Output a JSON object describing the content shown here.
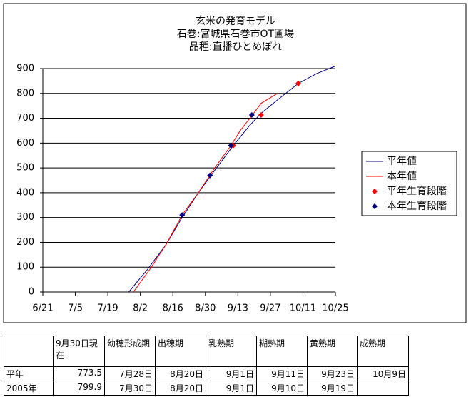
{
  "chart_data": {
    "type": "line",
    "title": [
      "玄米の発育モデル",
      "石巻:宮城県石巻市OT圃場",
      "品種:直播ひとめぼれ"
    ],
    "xlim": [
      "6/21",
      "10/25"
    ],
    "xticks": [
      "6/21",
      "7/5",
      "7/19",
      "8/2",
      "8/16",
      "8/30",
      "9/13",
      "9/27",
      "10/11",
      "10/25"
    ],
    "ylim": [
      0,
      900
    ],
    "yticks": [
      0,
      100,
      200,
      300,
      400,
      500,
      600,
      700,
      800,
      900
    ],
    "grid": true,
    "series": [
      {
        "name": "平年値",
        "type": "line",
        "color": "#000080",
        "x": [
          "7/28",
          "8/5",
          "8/13",
          "8/20",
          "8/27",
          "9/3",
          "9/11",
          "9/18",
          "9/23",
          "9/30",
          "10/9",
          "10/17",
          "10/25"
        ],
        "values": [
          0,
          90,
          190,
          300,
          400,
          490,
          590,
          670,
          720,
          773.5,
          840,
          880,
          910
        ]
      },
      {
        "name": "本年値",
        "type": "line",
        "color": "#ff0000",
        "x": [
          "7/30",
          "8/6",
          "8/13",
          "8/20",
          "8/27",
          "9/3",
          "9/10",
          "9/14",
          "9/19",
          "9/23",
          "9/30"
        ],
        "values": [
          0,
          90,
          190,
          310,
          400,
          500,
          590,
          650,
          710,
          760,
          799.9
        ]
      },
      {
        "name": "平年生育段階",
        "type": "scatter",
        "color": "#ff0000",
        "x": [
          "9/11",
          "9/23",
          "10/9"
        ],
        "values": [
          590,
          713,
          840
        ]
      },
      {
        "name": "本年生育段階",
        "type": "scatter",
        "color": "#000080",
        "x": [
          "8/20",
          "9/1",
          "9/10",
          "9/19"
        ],
        "values": [
          310,
          470,
          590,
          713
        ]
      }
    ]
  },
  "table": {
    "header": [
      null,
      "9月30日現在",
      "幼穂形成期",
      "出穂期",
      "乳熟期",
      "糊熟期",
      "黄熟期",
      "成熟期"
    ],
    "rows": [
      [
        "平年",
        773.5,
        "7月28日",
        "8月20日",
        "9月1日",
        "9月11日",
        "9月23日",
        "10月9日"
      ],
      [
        "2005年",
        799.9,
        "7月30日",
        "8月20日",
        "9月1日",
        "9月10日",
        "9月19日",
        null
      ]
    ]
  }
}
